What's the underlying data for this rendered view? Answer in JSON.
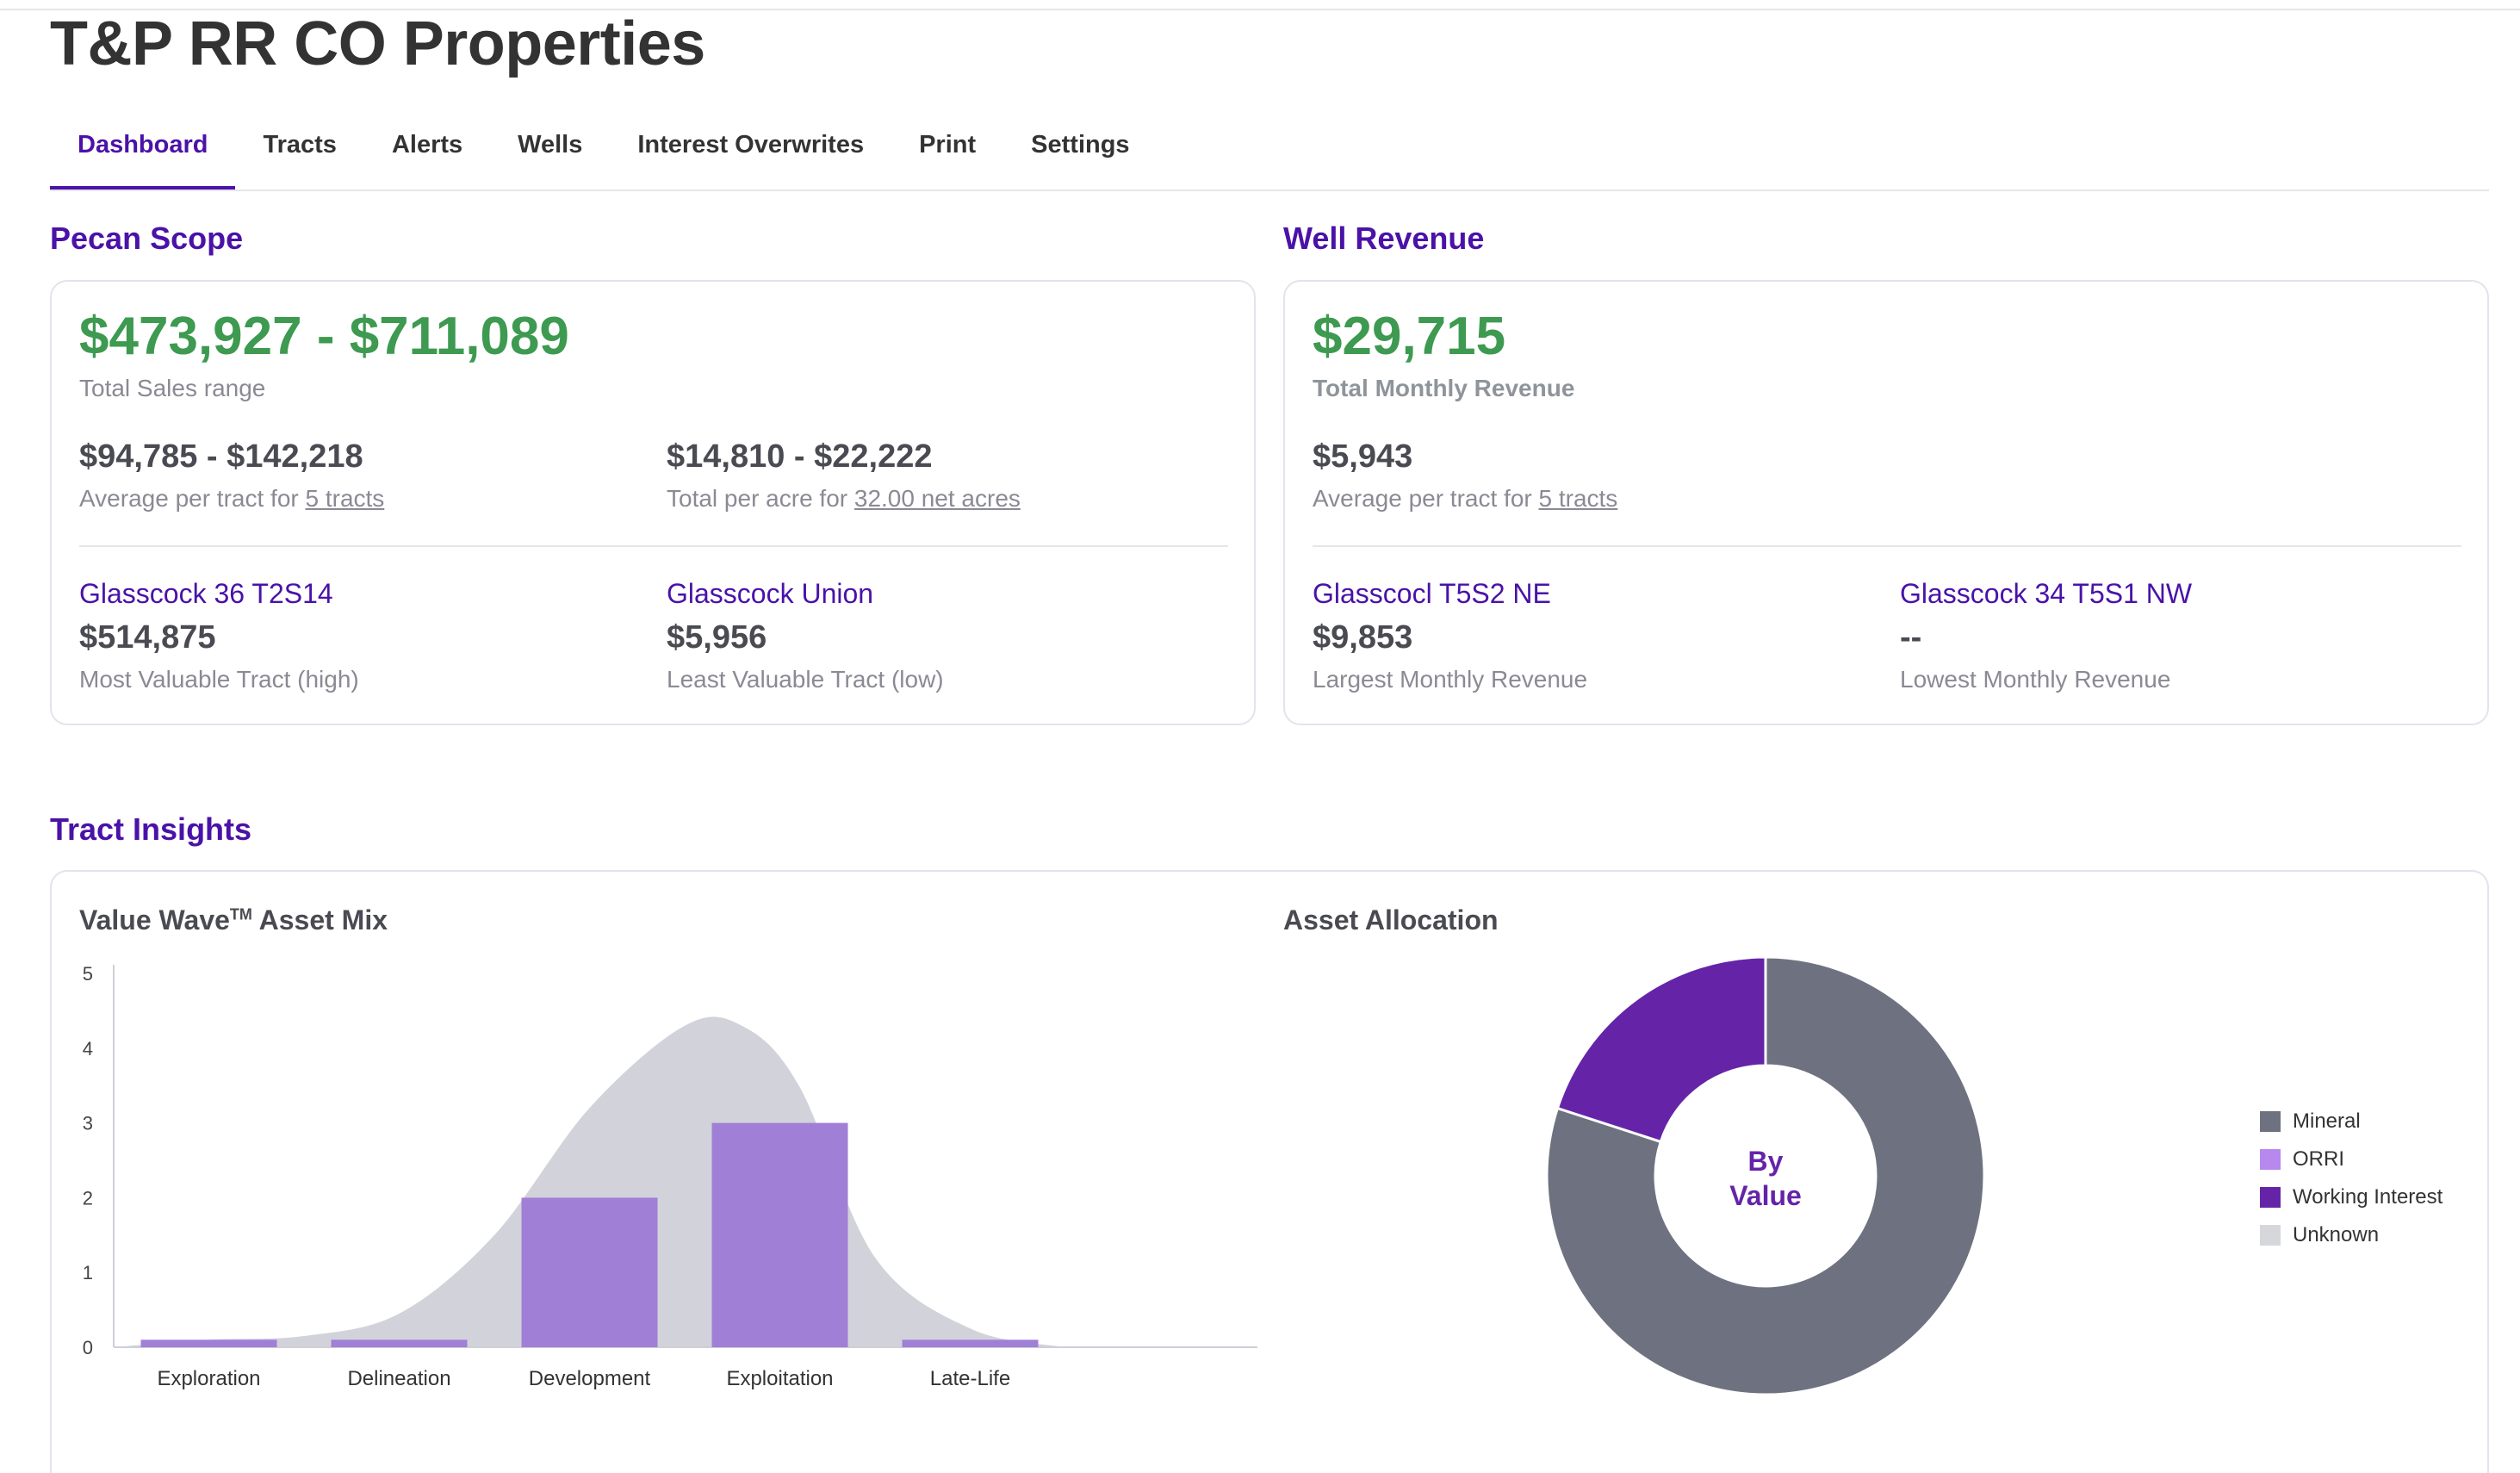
{
  "page": {
    "title": "T&P RR CO Properties"
  },
  "tabs": [
    "Dashboard",
    "Tracts",
    "Alerts",
    "Wells",
    "Interest Overwrites",
    "Print",
    "Settings"
  ],
  "pecan_scope": {
    "heading": "Pecan Scope",
    "total_range": "$473,927 - $711,089",
    "total_label": "Total Sales range",
    "avg_value": "$94,785 - $142,218",
    "avg_label_prefix": "Average per tract for ",
    "avg_label_link": "5 tracts",
    "acre_value": "$14,810 - $22,222",
    "acre_label_prefix": "Total per acre for ",
    "acre_label_link": "32.00 net acres",
    "most_name": "Glasscock 36 T2S14",
    "most_value": "$514,875",
    "most_label": "Most Valuable Tract (high)",
    "least_name": "Glasscock Union",
    "least_value": "$5,956",
    "least_label": "Least Valuable Tract (low)"
  },
  "well_revenue": {
    "heading": "Well Revenue",
    "total": "$29,715",
    "total_label": "Total Monthly Revenue",
    "avg_value": "$5,943",
    "avg_label_prefix": "Average per tract for ",
    "avg_label_link": "5 tracts",
    "largest_name": "Glasscocl T5S2 NE",
    "largest_value": "$9,853",
    "largest_label": "Largest Monthly Revenue",
    "lowest_name": "Glasscock 34 T5S1 NW",
    "lowest_value": "--",
    "lowest_label": "Lowest Monthly Revenue"
  },
  "tract_insights": {
    "heading": "Tract Insights"
  },
  "colors": {
    "accent": "#4a12a8",
    "green": "#3d9a50",
    "bar": "#a07fd6",
    "wave": "#d2d3da",
    "mineral": "#6e7280",
    "orri": "#b789ef",
    "working_interest": "#6524a8",
    "unknown": "#d6d7db"
  },
  "chart_data": [
    {
      "type": "bar",
      "title": "Value Wave",
      "title_mark": "TM",
      "title_suffix": " Asset Mix",
      "categories": [
        "Exploration",
        "Delineation",
        "Development",
        "Exploitation",
        "Late-Life"
      ],
      "values": [
        0.1,
        0.1,
        2,
        3,
        0.1
      ],
      "ylim": [
        0,
        5
      ],
      "yticks": [
        0,
        1,
        2,
        3,
        4,
        5
      ],
      "wave_curve": [
        [
          0,
          0
        ],
        [
          0.5,
          0.1
        ],
        [
          1,
          0.15
        ],
        [
          1.5,
          0.45
        ],
        [
          2,
          1.5
        ],
        [
          2.5,
          3.2
        ],
        [
          3,
          4.3
        ],
        [
          3.3,
          4.3
        ],
        [
          3.6,
          3.5
        ],
        [
          4,
          1.2
        ],
        [
          4.5,
          0.25
        ],
        [
          5,
          0
        ]
      ]
    },
    {
      "type": "pie",
      "title": "Asset Allocation",
      "center_label_line1": "By",
      "center_label_line2": "Value",
      "labels": [
        "Mineral",
        "ORRI",
        "Working Interest",
        "Unknown"
      ],
      "values": [
        80,
        0,
        20,
        0
      ]
    }
  ]
}
